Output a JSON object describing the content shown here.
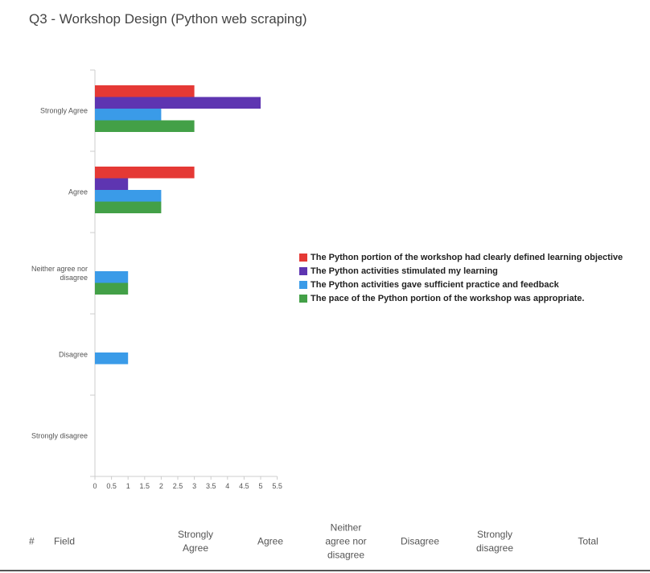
{
  "question_title": "Q3 - Workshop Design (Python web scraping)",
  "colors": {
    "series": [
      "#e53935",
      "#5e35b1",
      "#3a9be8",
      "#43a047"
    ],
    "axis": "#cccccc",
    "text": "#555555"
  },
  "chart_data": {
    "type": "bar",
    "orientation": "horizontal",
    "title": "",
    "xlabel": "",
    "ylabel": "",
    "categories": [
      "Strongly Agree",
      "Agree",
      "Neither agree nor disagree",
      "Disagree",
      "Strongly disagree"
    ],
    "category_label_lines": [
      [
        "Strongly Agree"
      ],
      [
        "Agree"
      ],
      [
        "Neither agree nor",
        "disagree"
      ],
      [
        "Disagree"
      ],
      [
        "Strongly disagree"
      ]
    ],
    "series": [
      {
        "name": "The Python portion of the workshop had clearly defined learning objective",
        "values": [
          3,
          3,
          0,
          0,
          0
        ]
      },
      {
        "name": "The Python activities stimulated my learning",
        "values": [
          5,
          1,
          0,
          0,
          0
        ]
      },
      {
        "name": "The Python activities gave sufficient practice and feedback",
        "values": [
          2,
          2,
          1,
          1,
          0
        ]
      },
      {
        "name": "The pace of the Python portion of the workshop was appropriate.",
        "values": [
          3,
          2,
          1,
          0,
          0
        ]
      }
    ],
    "xlim": [
      0,
      5.5
    ],
    "xticks": [
      "0",
      "0.5",
      "1",
      "1.5",
      "2",
      "2.5",
      "3",
      "3.5",
      "4",
      "4.5",
      "5",
      "5.5"
    ],
    "grid": false,
    "legend_position": "right"
  },
  "table": {
    "headers": {
      "hash": "#",
      "field": "Field",
      "strongly_agree": [
        "Strongly",
        "Agree"
      ],
      "agree": "Agree",
      "neither": [
        "Neither",
        "agree nor",
        "disagree"
      ],
      "disagree": "Disagree",
      "strongly_disagree": [
        "Strongly",
        "disagree"
      ],
      "total": "Total"
    }
  }
}
